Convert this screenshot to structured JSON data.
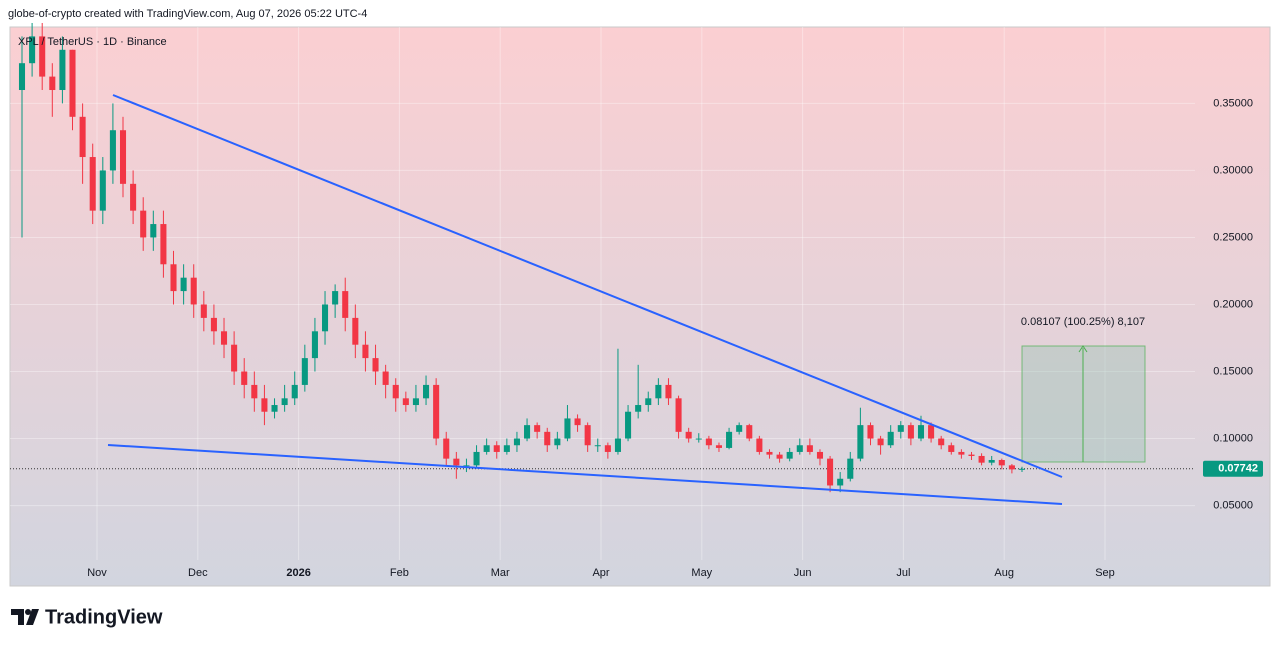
{
  "header": {
    "caption": "globe-of-crypto created with TradingView.com, Aug 07, 2026 05:22 UTC-4",
    "logo": "TradingView"
  },
  "chart_data": {
    "type": "candlestick",
    "title": "XPL / TetherUS · 1D · Binance",
    "x_labels": [
      "Nov",
      "Dec",
      "2026",
      "Feb",
      "Mar",
      "Apr",
      "May",
      "Jun",
      "Jul",
      "Aug",
      "Sep"
    ],
    "ylim": [
      -0.01,
      0.407
    ],
    "yticks": [
      {
        "value": 0.05,
        "label": "0.05000"
      },
      {
        "value": 0.1,
        "label": "0.10000"
      },
      {
        "value": 0.15,
        "label": "0.15000"
      },
      {
        "value": 0.2,
        "label": "0.20000"
      },
      {
        "value": 0.25,
        "label": "0.25000"
      },
      {
        "value": 0.3,
        "label": "0.30000"
      },
      {
        "value": 0.35,
        "label": "0.35000"
      }
    ],
    "up_color": "#089981",
    "down_color": "#f23645",
    "last_price": {
      "value": 0.07742,
      "label": "0.07742"
    },
    "measure_label": "0.08107 (100.25%) 8,107",
    "candles": [
      [
        0.36,
        0.4,
        0.25,
        0.38
      ],
      [
        0.38,
        0.41,
        0.37,
        0.4
      ],
      [
        0.4,
        0.41,
        0.36,
        0.37
      ],
      [
        0.37,
        0.38,
        0.34,
        0.36
      ],
      [
        0.36,
        0.4,
        0.35,
        0.39
      ],
      [
        0.39,
        0.39,
        0.33,
        0.34
      ],
      [
        0.34,
        0.35,
        0.29,
        0.31
      ],
      [
        0.31,
        0.32,
        0.26,
        0.27
      ],
      [
        0.27,
        0.31,
        0.26,
        0.3
      ],
      [
        0.3,
        0.35,
        0.29,
        0.33
      ],
      [
        0.33,
        0.34,
        0.28,
        0.29
      ],
      [
        0.29,
        0.3,
        0.26,
        0.27
      ],
      [
        0.27,
        0.28,
        0.24,
        0.25
      ],
      [
        0.25,
        0.27,
        0.24,
        0.26
      ],
      [
        0.26,
        0.27,
        0.22,
        0.23
      ],
      [
        0.23,
        0.24,
        0.2,
        0.21
      ],
      [
        0.21,
        0.23,
        0.2,
        0.22
      ],
      [
        0.22,
        0.23,
        0.19,
        0.2
      ],
      [
        0.2,
        0.21,
        0.18,
        0.19
      ],
      [
        0.19,
        0.2,
        0.17,
        0.18
      ],
      [
        0.18,
        0.19,
        0.16,
        0.17
      ],
      [
        0.17,
        0.18,
        0.14,
        0.15
      ],
      [
        0.15,
        0.16,
        0.13,
        0.14
      ],
      [
        0.14,
        0.15,
        0.12,
        0.13
      ],
      [
        0.13,
        0.14,
        0.11,
        0.12
      ],
      [
        0.12,
        0.13,
        0.115,
        0.125
      ],
      [
        0.125,
        0.14,
        0.12,
        0.13
      ],
      [
        0.13,
        0.15,
        0.125,
        0.14
      ],
      [
        0.14,
        0.17,
        0.135,
        0.16
      ],
      [
        0.16,
        0.19,
        0.15,
        0.18
      ],
      [
        0.18,
        0.21,
        0.17,
        0.2
      ],
      [
        0.2,
        0.215,
        0.19,
        0.21
      ],
      [
        0.21,
        0.22,
        0.18,
        0.19
      ],
      [
        0.19,
        0.2,
        0.16,
        0.17
      ],
      [
        0.17,
        0.18,
        0.15,
        0.16
      ],
      [
        0.16,
        0.17,
        0.14,
        0.15
      ],
      [
        0.15,
        0.155,
        0.13,
        0.14
      ],
      [
        0.14,
        0.145,
        0.12,
        0.13
      ],
      [
        0.13,
        0.135,
        0.12,
        0.125
      ],
      [
        0.125,
        0.14,
        0.12,
        0.13
      ],
      [
        0.13,
        0.147,
        0.125,
        0.14
      ],
      [
        0.14,
        0.145,
        0.095,
        0.1
      ],
      [
        0.1,
        0.105,
        0.08,
        0.085
      ],
      [
        0.085,
        0.09,
        0.07,
        0.08
      ],
      [
        0.08,
        0.085,
        0.075,
        0.08
      ],
      [
        0.08,
        0.095,
        0.078,
        0.09
      ],
      [
        0.09,
        0.1,
        0.088,
        0.095
      ],
      [
        0.095,
        0.098,
        0.085,
        0.09
      ],
      [
        0.09,
        0.1,
        0.088,
        0.095
      ],
      [
        0.095,
        0.105,
        0.09,
        0.1
      ],
      [
        0.1,
        0.115,
        0.098,
        0.11
      ],
      [
        0.11,
        0.112,
        0.1,
        0.105
      ],
      [
        0.105,
        0.108,
        0.09,
        0.095
      ],
      [
        0.095,
        0.105,
        0.092,
        0.1
      ],
      [
        0.1,
        0.125,
        0.098,
        0.115
      ],
      [
        0.115,
        0.118,
        0.105,
        0.11
      ],
      [
        0.11,
        0.112,
        0.09,
        0.095
      ],
      [
        0.095,
        0.1,
        0.09,
        0.095
      ],
      [
        0.095,
        0.097,
        0.085,
        0.09
      ],
      [
        0.09,
        0.167,
        0.088,
        0.1
      ],
      [
        0.1,
        0.125,
        0.098,
        0.12
      ],
      [
        0.12,
        0.155,
        0.115,
        0.125
      ],
      [
        0.125,
        0.135,
        0.12,
        0.13
      ],
      [
        0.13,
        0.145,
        0.125,
        0.14
      ],
      [
        0.14,
        0.145,
        0.125,
        0.13
      ],
      [
        0.13,
        0.132,
        0.1,
        0.105
      ],
      [
        0.105,
        0.108,
        0.097,
        0.1
      ],
      [
        0.1,
        0.104,
        0.097,
        0.1
      ],
      [
        0.1,
        0.102,
        0.092,
        0.095
      ],
      [
        0.095,
        0.097,
        0.09,
        0.093
      ],
      [
        0.093,
        0.108,
        0.092,
        0.105
      ],
      [
        0.105,
        0.112,
        0.103,
        0.11
      ],
      [
        0.11,
        0.111,
        0.098,
        0.1
      ],
      [
        0.1,
        0.102,
        0.088,
        0.09
      ],
      [
        0.09,
        0.092,
        0.085,
        0.088
      ],
      [
        0.088,
        0.09,
        0.082,
        0.085
      ],
      [
        0.085,
        0.093,
        0.083,
        0.09
      ],
      [
        0.09,
        0.1,
        0.088,
        0.095
      ],
      [
        0.095,
        0.1,
        0.088,
        0.09
      ],
      [
        0.09,
        0.092,
        0.08,
        0.085
      ],
      [
        0.085,
        0.087,
        0.06,
        0.065
      ],
      [
        0.065,
        0.075,
        0.06,
        0.07
      ],
      [
        0.07,
        0.09,
        0.068,
        0.085
      ],
      [
        0.085,
        0.123,
        0.083,
        0.11
      ],
      [
        0.11,
        0.112,
        0.095,
        0.1
      ],
      [
        0.1,
        0.102,
        0.088,
        0.095
      ],
      [
        0.095,
        0.11,
        0.093,
        0.105
      ],
      [
        0.105,
        0.113,
        0.1,
        0.11
      ],
      [
        0.11,
        0.112,
        0.095,
        0.1
      ],
      [
        0.1,
        0.117,
        0.098,
        0.11
      ],
      [
        0.11,
        0.112,
        0.097,
        0.1
      ],
      [
        0.1,
        0.102,
        0.092,
        0.095
      ],
      [
        0.095,
        0.097,
        0.088,
        0.09
      ],
      [
        0.09,
        0.092,
        0.085,
        0.088
      ],
      [
        0.088,
        0.09,
        0.084,
        0.087
      ],
      [
        0.087,
        0.089,
        0.08,
        0.082
      ],
      [
        0.082,
        0.087,
        0.08,
        0.084
      ],
      [
        0.084,
        0.085,
        0.077,
        0.08
      ],
      [
        0.08,
        0.081,
        0.074,
        0.077
      ],
      [
        0.077,
        0.079,
        0.075,
        0.07742
      ]
    ]
  }
}
